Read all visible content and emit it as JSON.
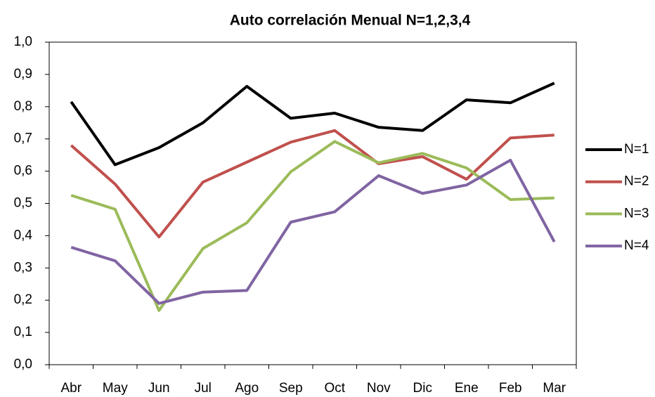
{
  "chart_data": {
    "type": "line",
    "title": "Auto correlación Menual N=1,2,3,4",
    "categories": [
      "Abr",
      "May",
      "Jun",
      "Jul",
      "Ago",
      "Sep",
      "Oct",
      "Nov",
      "Dic",
      "Ene",
      "Feb",
      "Mar"
    ],
    "series": [
      {
        "name": "N=1",
        "color": "#000000",
        "values": [
          0.815,
          0.62,
          0.673,
          0.75,
          0.863,
          0.764,
          0.78,
          0.736,
          0.726,
          0.821,
          0.812,
          0.873
        ]
      },
      {
        "name": "N=2",
        "color": "#c0504d",
        "values": [
          0.68,
          0.56,
          0.396,
          0.566,
          0.628,
          0.69,
          0.726,
          0.623,
          0.645,
          0.575,
          0.703,
          0.712
        ]
      },
      {
        "name": "N=3",
        "color": "#9bbb59",
        "values": [
          0.525,
          0.482,
          0.168,
          0.36,
          0.44,
          0.598,
          0.692,
          0.626,
          0.655,
          0.61,
          0.512,
          0.517
        ]
      },
      {
        "name": "N=4",
        "color": "#8064a2",
        "values": [
          0.364,
          0.322,
          0.19,
          0.225,
          0.23,
          0.442,
          0.474,
          0.586,
          0.531,
          0.557,
          0.634,
          0.381
        ]
      }
    ],
    "ylim": [
      0,
      1
    ],
    "yticks": [
      {
        "value": 0,
        "label": "0,0"
      },
      {
        "value": 0.1,
        "label": "0,1"
      },
      {
        "value": 0.2,
        "label": "0,2"
      },
      {
        "value": 0.3,
        "label": "0,3"
      },
      {
        "value": 0.4,
        "label": "0,4"
      },
      {
        "value": 0.5,
        "label": "0,5"
      },
      {
        "value": 0.6,
        "label": "0,6"
      },
      {
        "value": 0.7,
        "label": "0,7"
      },
      {
        "value": 0.8,
        "label": "0,8"
      },
      {
        "value": 0.9,
        "label": "0,9"
      },
      {
        "value": 1,
        "label": "1,0"
      }
    ],
    "legend": "right"
  }
}
